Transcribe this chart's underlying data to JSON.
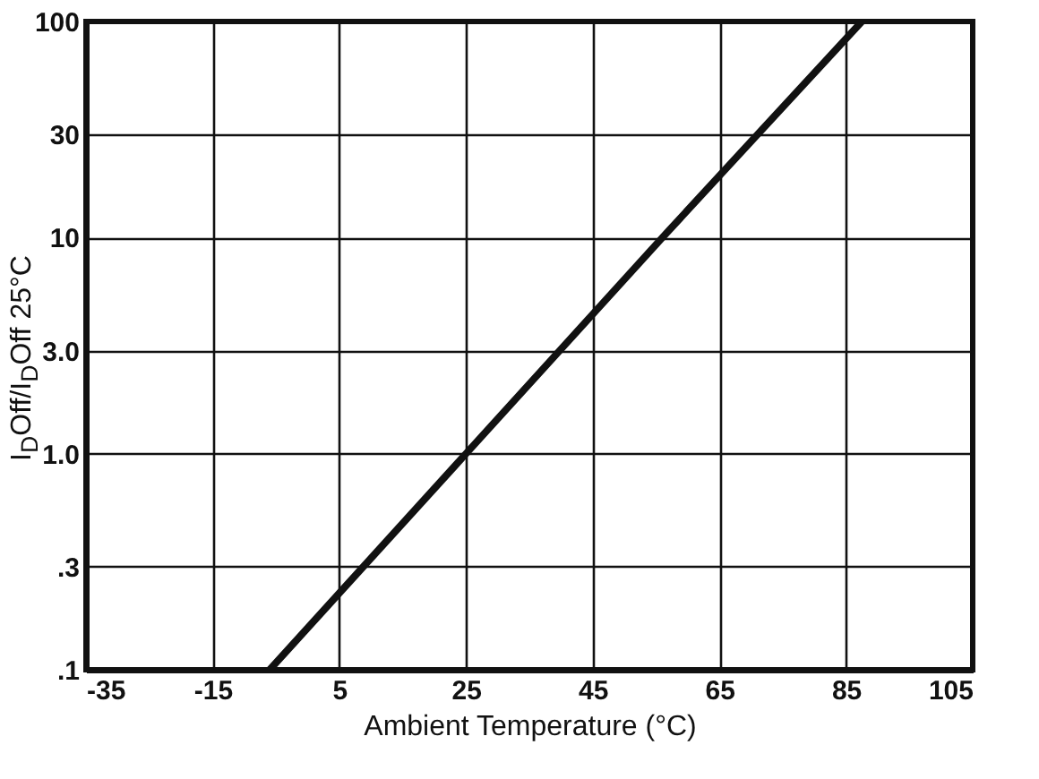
{
  "chart_data": {
    "type": "line",
    "xlabel": "Ambient Temperature (°C)",
    "ylabel": "I$_{D}$Off/I$_{D}$Off 25°C",
    "x": [
      -6,
      25,
      56,
      87.5
    ],
    "series": [
      {
        "color": "#111111",
        "values": [
          0.1,
          1,
          10,
          100
        ]
      }
    ],
    "xlim": [
      -35,
      105
    ],
    "xticks": [
      -35,
      -15,
      5,
      25,
      45,
      65,
      85,
      105
    ],
    "ylim": [
      0.1,
      100
    ],
    "yticks": [
      {
        "value": 0.1,
        "label": ".1"
      },
      {
        "value": 0.3,
        "label": ".3"
      },
      {
        "value": 1,
        "label": "1.0"
      },
      {
        "value": 3,
        "label": "3.0"
      },
      10,
      30,
      100
    ],
    "log": "y",
    "grid": true,
    "marker": "none",
    "line_style": "solid"
  }
}
